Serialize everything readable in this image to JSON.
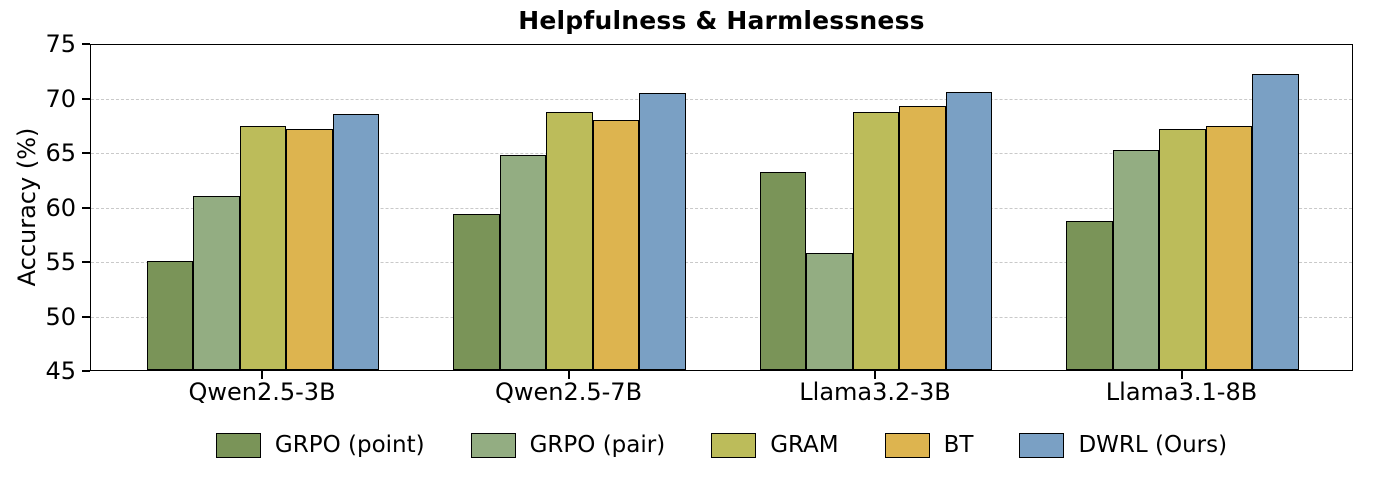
{
  "chart_data": {
    "type": "bar",
    "title": "Helpfulness & Harmlessness",
    "xlabel": "",
    "ylabel": "Accuracy (%)",
    "ylim": [
      45,
      75
    ],
    "yticks": [
      45,
      50,
      55,
      60,
      65,
      70,
      75
    ],
    "gridline_values": [
      50,
      55,
      60,
      65,
      70
    ],
    "grid_style": "horizontal dashed light-gray",
    "legend_position": "bottom center, horizontal row",
    "categories": [
      "Qwen2.5-3B",
      "Qwen2.5-7B",
      "Llama3.2-3B",
      "Llama3.1-8B"
    ],
    "series": [
      {
        "name": "GRPO (point)",
        "color": "#7a9458",
        "values": [
          55.0,
          59.3,
          63.2,
          58.7
        ]
      },
      {
        "name": "GRPO (pair)",
        "color": "#93ad82",
        "values": [
          61.0,
          64.7,
          55.7,
          65.2
        ]
      },
      {
        "name": "GRAM",
        "color": "#bcbc5a",
        "values": [
          67.4,
          68.7,
          68.7,
          67.1
        ]
      },
      {
        "name": "BT",
        "color": "#ddb44f",
        "values": [
          67.1,
          67.9,
          69.2,
          67.4
        ]
      },
      {
        "name": "DWRL (Ours)",
        "color": "#7aa0c4",
        "values": [
          68.5,
          70.4,
          70.5,
          72.2
        ]
      }
    ],
    "bar_edge_color": "#000000",
    "axis_color": "#000000",
    "gridline_color": "#c9c9c9",
    "background_color": "#ffffff"
  }
}
